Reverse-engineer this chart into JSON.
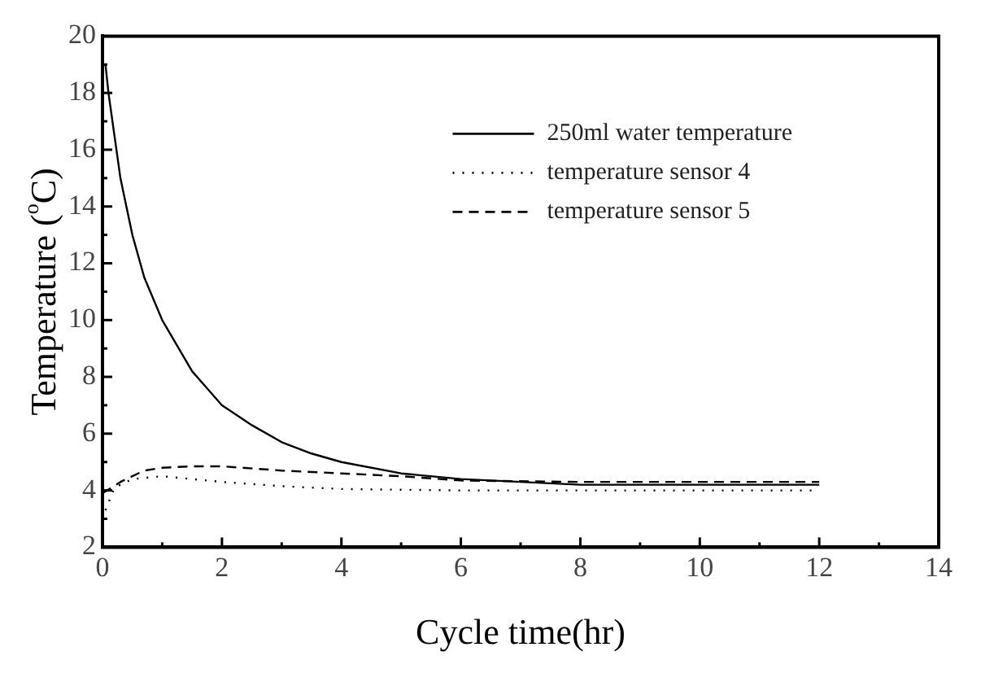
{
  "chart_data": {
    "type": "line",
    "xlabel": "Cycle time(hr)",
    "ylabel": "Temperature ($^{o}$C)",
    "xlim": [
      0,
      14
    ],
    "xticks": [
      0,
      2,
      4,
      6,
      8,
      10,
      12,
      14
    ],
    "ylim": [
      2,
      20
    ],
    "yticks": [
      2,
      4,
      6,
      8,
      10,
      12,
      14,
      16,
      18,
      20
    ],
    "grid": false,
    "legend": "top right",
    "marker": "none",
    "series": [
      {
        "name": "250ml water temperature",
        "color": "#000000",
        "line_style": "solid",
        "x": [
          0.05,
          0.1,
          0.2,
          0.3,
          0.5,
          0.7,
          1,
          1.5,
          2,
          2.5,
          3,
          3.5,
          4,
          5,
          6,
          7,
          8,
          9,
          10,
          11,
          12
        ],
        "values": [
          19,
          18,
          16.5,
          15,
          13,
          11.5,
          10,
          8.2,
          7,
          6.3,
          5.7,
          5.3,
          5,
          4.6,
          4.4,
          4.3,
          4.2,
          4.2,
          4.2,
          4.2,
          4.2
        ]
      },
      {
        "name": "temperature sensor 4",
        "color": "#000000",
        "line_style": "dotted",
        "x": [
          0.05,
          0.2,
          0.5,
          1,
          1.5,
          2,
          3,
          4,
          6,
          8,
          10,
          12
        ],
        "values": [
          3.3,
          4.1,
          4.4,
          4.5,
          4.4,
          4.3,
          4.15,
          4.05,
          4,
          4,
          4,
          4
        ]
      },
      {
        "name": "temperature sensor 5",
        "color": "#000000",
        "line_style": "dashed",
        "x": [
          0,
          0.3,
          0.7,
          1,
          1.5,
          2,
          3,
          4,
          5,
          6,
          8,
          10,
          12
        ],
        "values": [
          3.9,
          4.3,
          4.7,
          4.8,
          4.85,
          4.85,
          4.7,
          4.6,
          4.5,
          4.35,
          4.3,
          4.3,
          4.3
        ]
      }
    ]
  }
}
